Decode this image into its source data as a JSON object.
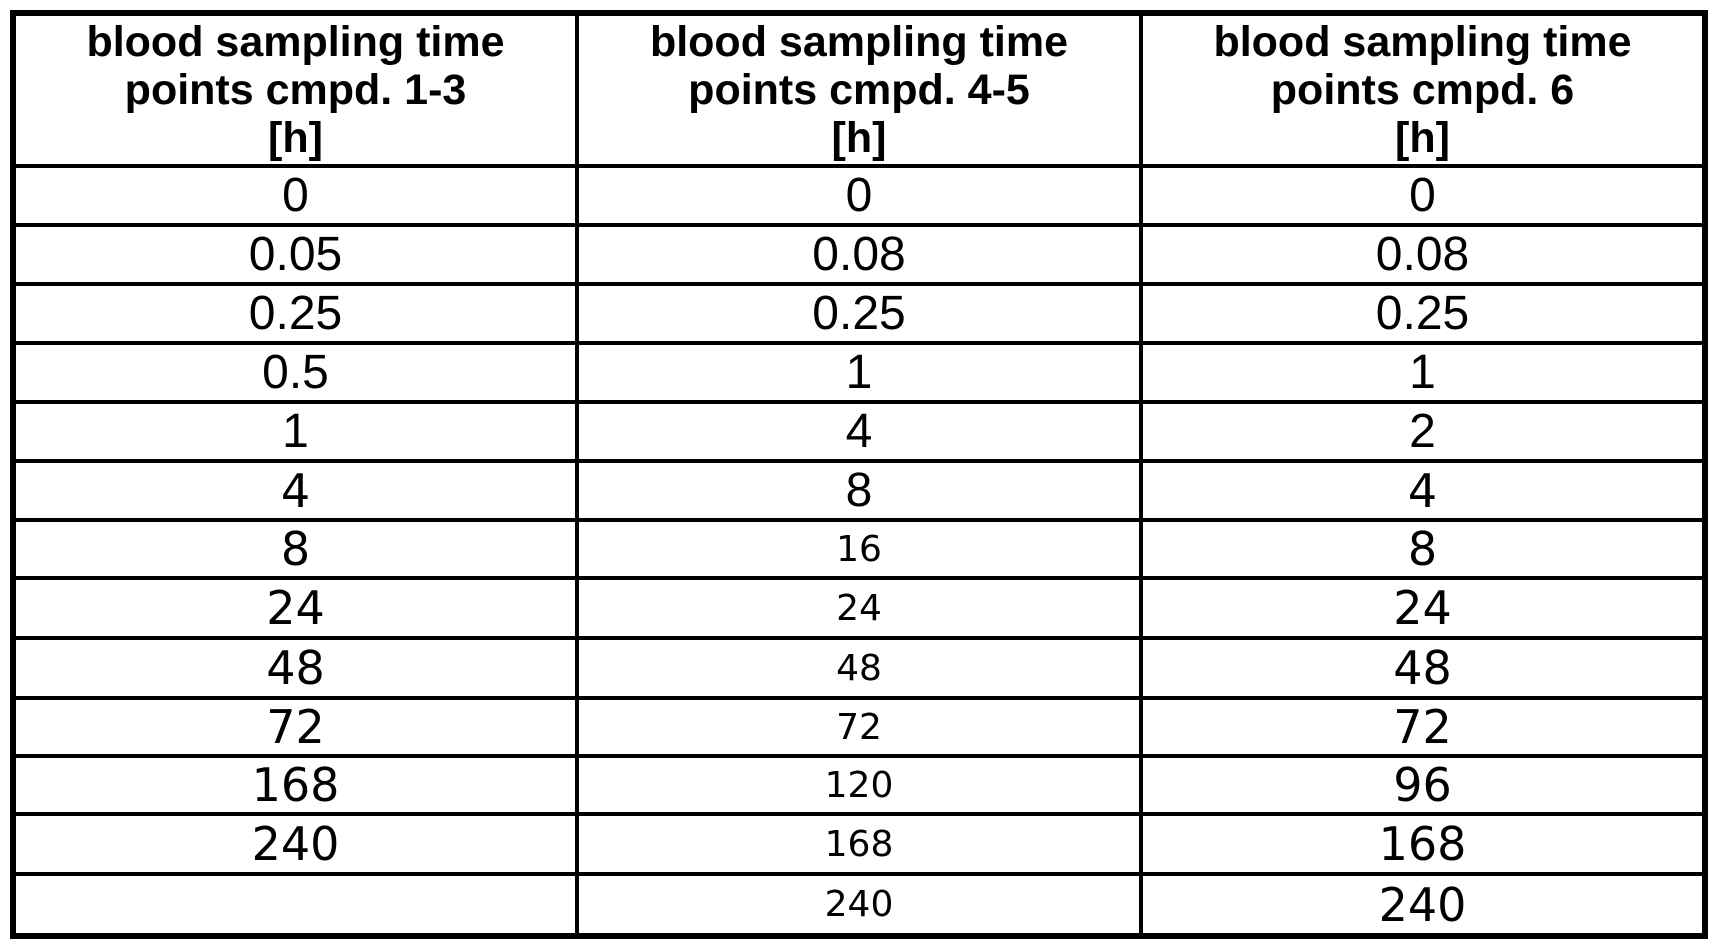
{
  "table": {
    "border_color": "#000000",
    "background": "#ffffff",
    "text_color": "#000000",
    "headers": [
      {
        "lines": [
          "blood sampling time",
          "points cmpd. 1-3",
          "[h]"
        ]
      },
      {
        "lines": [
          "blood sampling time",
          "points cmpd. 4-5",
          "[h]"
        ]
      },
      {
        "lines": [
          "blood sampling time",
          "points cmpd. 6",
          "[h]"
        ]
      }
    ],
    "columns": [
      {
        "name": "cmpd_1_3_h",
        "values": [
          "0",
          "0.05",
          "0.25",
          "0.5",
          "1",
          "4",
          "8",
          "24",
          "48",
          "72",
          "168",
          "240",
          ""
        ]
      },
      {
        "name": "cmpd_4_5_h",
        "values": [
          "0",
          "0.08",
          "0.25",
          "1",
          "4",
          "8",
          "16",
          "24",
          "48",
          "72",
          "120",
          "168",
          "240"
        ]
      },
      {
        "name": "cmpd_6_h",
        "values": [
          "0",
          "0.08",
          "0.25",
          "1",
          "2",
          "4",
          "8",
          "24",
          "48",
          "72",
          "96",
          "168",
          "240"
        ]
      }
    ],
    "rows": [
      [
        {
          "v": "0",
          "f": "f1"
        },
        {
          "v": "0",
          "f": "f1"
        },
        {
          "v": "0",
          "f": "f1"
        }
      ],
      [
        {
          "v": "0.05",
          "f": "f1"
        },
        {
          "v": "0.08",
          "f": "f1"
        },
        {
          "v": "0.08",
          "f": "f1"
        }
      ],
      [
        {
          "v": "0.25",
          "f": "f1"
        },
        {
          "v": "0.25",
          "f": "f1"
        },
        {
          "v": "0.25",
          "f": "f1"
        }
      ],
      [
        {
          "v": "0.5",
          "f": "f1"
        },
        {
          "v": "1",
          "f": "f1"
        },
        {
          "v": "1",
          "f": "f1"
        }
      ],
      [
        {
          "v": "1",
          "f": "f1"
        },
        {
          "v": "4",
          "f": "f1"
        },
        {
          "v": "2",
          "f": "f1"
        }
      ],
      [
        {
          "v": "4",
          "f": "f2"
        },
        {
          "v": "8",
          "f": "f1"
        },
        {
          "v": "4",
          "f": "f2"
        }
      ],
      [
        {
          "v": "8",
          "f": "f2"
        },
        {
          "v": "16",
          "f": "f2s"
        },
        {
          "v": "8",
          "f": "f2"
        }
      ],
      [
        {
          "v": "24",
          "f": "f2"
        },
        {
          "v": "24",
          "f": "f2s"
        },
        {
          "v": "24",
          "f": "f2"
        }
      ],
      [
        {
          "v": "48",
          "f": "f2"
        },
        {
          "v": "48",
          "f": "f2s"
        },
        {
          "v": "48",
          "f": "f2"
        }
      ],
      [
        {
          "v": "72",
          "f": "f2"
        },
        {
          "v": "72",
          "f": "f2s"
        },
        {
          "v": "72",
          "f": "f2"
        }
      ],
      [
        {
          "v": "168",
          "f": "f2"
        },
        {
          "v": "120",
          "f": "f2s"
        },
        {
          "v": "96",
          "f": "f2"
        }
      ],
      [
        {
          "v": "240",
          "f": "f2"
        },
        {
          "v": "168",
          "f": "f2s"
        },
        {
          "v": "168",
          "f": "f2"
        }
      ],
      [
        {
          "v": "",
          "f": "f1"
        },
        {
          "v": "240",
          "f": "f2s"
        },
        {
          "v": "240",
          "f": "f2"
        }
      ]
    ]
  }
}
